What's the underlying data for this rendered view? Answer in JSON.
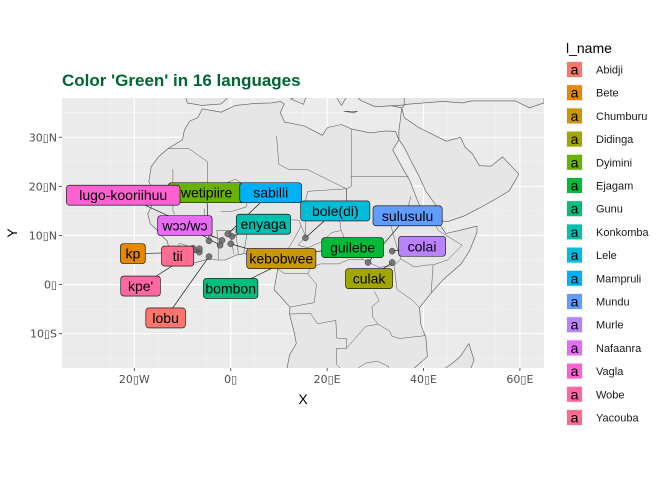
{
  "chart_data": {
    "type": "map",
    "title": "Color 'Green' in 16 languages",
    "title_color": "#006633",
    "xlabel": "X",
    "ylabel": "Y",
    "xlim": [
      -35,
      65
    ],
    "ylim": [
      -17,
      38
    ],
    "x_ticks": [
      {
        "value": -20,
        "label": "20▯W"
      },
      {
        "value": 0,
        "label": "0▯"
      },
      {
        "value": 20,
        "label": "20▯E"
      },
      {
        "value": 40,
        "label": "40▯E"
      },
      {
        "value": 60,
        "label": "60▯E"
      }
    ],
    "y_ticks": [
      {
        "value": 30,
        "label": "30▯N"
      },
      {
        "value": 20,
        "label": "20▯N"
      },
      {
        "value": 10,
        "label": "10▯N"
      },
      {
        "value": 0,
        "label": "0▯"
      },
      {
        "value": -10,
        "label": "10▯S"
      }
    ],
    "legend": {
      "title": "l_name",
      "key_glyph": "a",
      "position": "right",
      "items": [
        {
          "name": "Abidji",
          "color": "#F8766D"
        },
        {
          "name": "Bete",
          "color": "#E58700"
        },
        {
          "name": "Chumburu",
          "color": "#C99800"
        },
        {
          "name": "Didinga",
          "color": "#A3A500"
        },
        {
          "name": "Dyimini",
          "color": "#6BB100"
        },
        {
          "name": "Ejagam",
          "color": "#00BA38"
        },
        {
          "name": "Gunu",
          "color": "#00BF7D"
        },
        {
          "name": "Konkomba",
          "color": "#00C0AF"
        },
        {
          "name": "Lele",
          "color": "#00BCD8"
        },
        {
          "name": "Mampruli",
          "color": "#00B0F6"
        },
        {
          "name": "Mundu",
          "color": "#619CFF"
        },
        {
          "name": "Murle",
          "color": "#B983FF"
        },
        {
          "name": "Nafaanra",
          "color": "#E76BF3"
        },
        {
          "name": "Vagla",
          "color": "#FD61D1"
        },
        {
          "name": "Wobe",
          "color": "#FF67A4"
        },
        {
          "name": "Yacouba",
          "color": "#FF6C91"
        }
      ]
    },
    "points": [
      {
        "language": "Abidji",
        "word": "lobu",
        "lon": -4.5,
        "lat": 5.7,
        "label_lon": -13.5,
        "label_lat": -6.8
      },
      {
        "language": "Bete",
        "word": "kp",
        "lon": -6.5,
        "lat": 6.6,
        "label_lon": -20.3,
        "label_lat": 6.3
      },
      {
        "language": "Chumburu",
        "word": "kebobwee",
        "lon": 0.0,
        "lat": 8.3,
        "label_lon": 10.5,
        "label_lat": 5.3
      },
      {
        "language": "Didinga",
        "word": "culak",
        "lon": 33.5,
        "lat": 4.5,
        "label_lon": 28.7,
        "label_lat": 1.2
      },
      {
        "language": "Dyimini",
        "word": "wetipiire",
        "lon": -4.5,
        "lat": 8.9,
        "label_lon": -5.0,
        "label_lat": 18.7
      },
      {
        "language": "Ejagam",
        "word": "guilebe",
        "lon": 8.8,
        "lat": 5.8,
        "label_lon": 25.3,
        "label_lat": 7.5
      },
      {
        "language": "Gunu",
        "word": "bombon",
        "lon": 11.0,
        "lat": 4.5,
        "label_lon": 0.0,
        "label_lat": -0.8
      },
      {
        "language": "Konkomba",
        "word": "enyaga",
        "lon": 0.3,
        "lat": 9.8,
        "label_lon": 6.8,
        "label_lat": 12.3
      },
      {
        "language": "Lele",
        "word": "bole(di)",
        "lon": 15.5,
        "lat": 9.5,
        "label_lon": 21.7,
        "label_lat": 15.0
      },
      {
        "language": "Mampruli",
        "word": "sabilli",
        "lon": -0.6,
        "lat": 10.3,
        "label_lon": 8.3,
        "label_lat": 18.7
      },
      {
        "language": "Mundu",
        "word": "sulusulu",
        "lon": 28.5,
        "lat": 4.5,
        "label_lon": 36.7,
        "label_lat": 14.0
      },
      {
        "language": "Murle",
        "word": "colai",
        "lon": 33.5,
        "lat": 6.8,
        "label_lon": 39.7,
        "label_lat": 7.8
      },
      {
        "language": "Nafaanra",
        "word": "wɔɔ/wɔ",
        "lon": -2.2,
        "lat": 8.0,
        "label_lon": -9.5,
        "label_lat": 12.0
      },
      {
        "language": "Vagla",
        "word": "lugo-kooriihuu",
        "lon": -1.8,
        "lat": 9.0,
        "label_lon": -22.3,
        "label_lat": 18.2
      },
      {
        "language": "Wobe",
        "word": "kpe'",
        "lon": -6.5,
        "lat": 7.3,
        "label_lon": -18.7,
        "label_lat": -0.3
      },
      {
        "language": "Yacouba",
        "word": "tii",
        "lon": -7.8,
        "lat": 7.4,
        "label_lon": -11.0,
        "label_lat": 5.8
      }
    ]
  }
}
